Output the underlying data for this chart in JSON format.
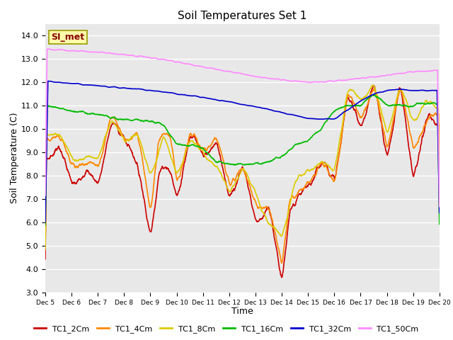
{
  "title": "Soil Temperatures Set 1",
  "xlabel": "Time",
  "ylabel": "Soil Temperature (C)",
  "ylim": [
    3.0,
    14.5
  ],
  "yticks": [
    3.0,
    4.0,
    5.0,
    6.0,
    7.0,
    8.0,
    9.0,
    10.0,
    11.0,
    12.0,
    13.0,
    14.0
  ],
  "fig_bg_color": "#ffffff",
  "plot_bg_color": "#e8e8e8",
  "grid_color": "#ffffff",
  "annotation_text": "SI_met",
  "annotation_bg": "#ffffaa",
  "annotation_border": "#999900",
  "annotation_fg": "#880000",
  "series": {
    "TC1_2Cm": {
      "color": "#cc0000",
      "lw": 1.2
    },
    "TC1_4Cm": {
      "color": "#ff8800",
      "lw": 1.2
    },
    "TC1_8Cm": {
      "color": "#ddcc00",
      "lw": 1.2
    },
    "TC1_16Cm": {
      "color": "#00bb00",
      "lw": 1.2
    },
    "TC1_32Cm": {
      "color": "#0000cc",
      "lw": 1.2
    },
    "TC1_50Cm": {
      "color": "#ff88ff",
      "lw": 1.2
    }
  },
  "x_ticks_labels": [
    "Dec 5",
    "Dec 6",
    "Dec 7",
    "Dec 8",
    "Dec 9",
    "Dec 10",
    "Dec 11",
    "Dec 12",
    "Dec 13",
    "Dec 14",
    "Dec 15",
    "Dec 16",
    "Dec 17",
    "Dec 18",
    "Dec 19",
    "Dec 20"
  ]
}
